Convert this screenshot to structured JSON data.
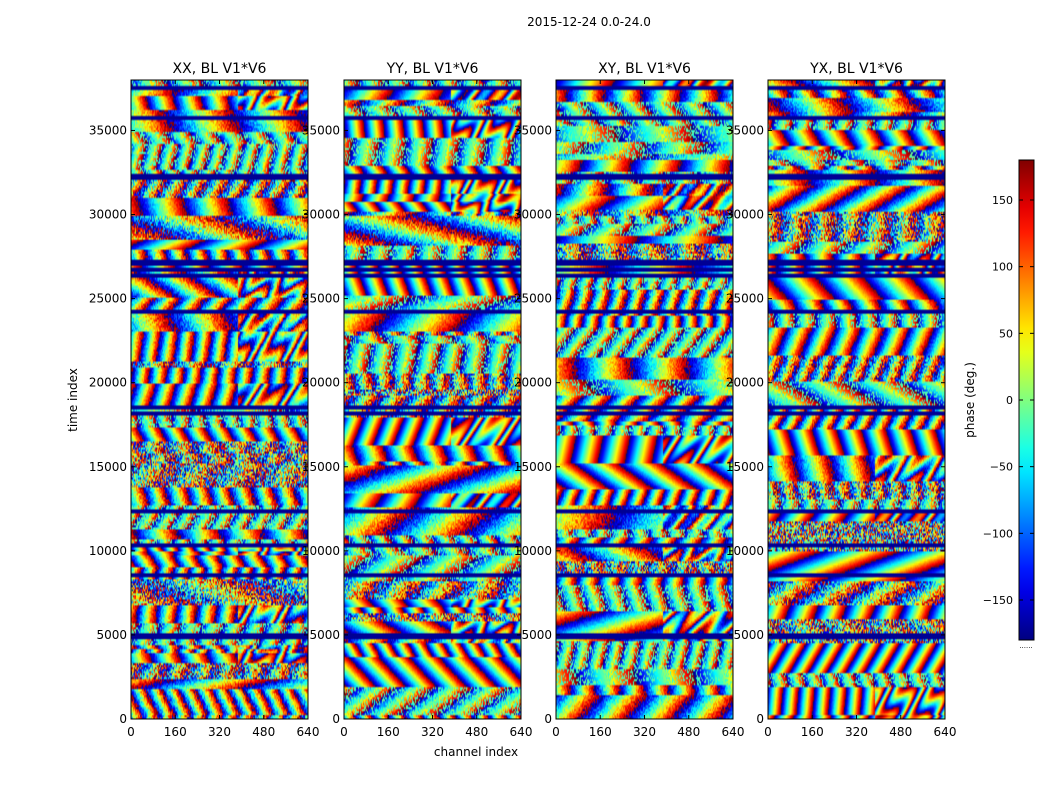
{
  "chart_data": {
    "type": "heatmap",
    "suptitle": "2015-12-24 0.0-24.0",
    "xlabel": "channel index",
    "ylabel": "time index",
    "xlim": [
      0,
      640
    ],
    "ylim": [
      0,
      38000
    ],
    "xticks": [
      0,
      160,
      320,
      480,
      640
    ],
    "yticks": [
      0,
      5000,
      10000,
      15000,
      20000,
      25000,
      30000,
      35000
    ],
    "panels": [
      {
        "title": "XX, BL V1*V6",
        "seed": 11
      },
      {
        "title": "YY, BL V1*V6",
        "seed": 23
      },
      {
        "title": "XY, BL V1*V6",
        "seed": 37
      },
      {
        "title": "YX, BL V1*V6",
        "seed": 53
      }
    ],
    "colorbar": {
      "label": "phase (deg.)",
      "range": [
        -180,
        180
      ],
      "ticks": [
        -150,
        -100,
        -50,
        0,
        50,
        100,
        150
      ],
      "colormap": "jet",
      "footer": "......"
    },
    "flagged_rows_time_index": [
      5000,
      8600,
      10400,
      12400,
      18200,
      18600,
      24300,
      26400,
      26800,
      27200,
      32300,
      35800,
      37600
    ]
  }
}
